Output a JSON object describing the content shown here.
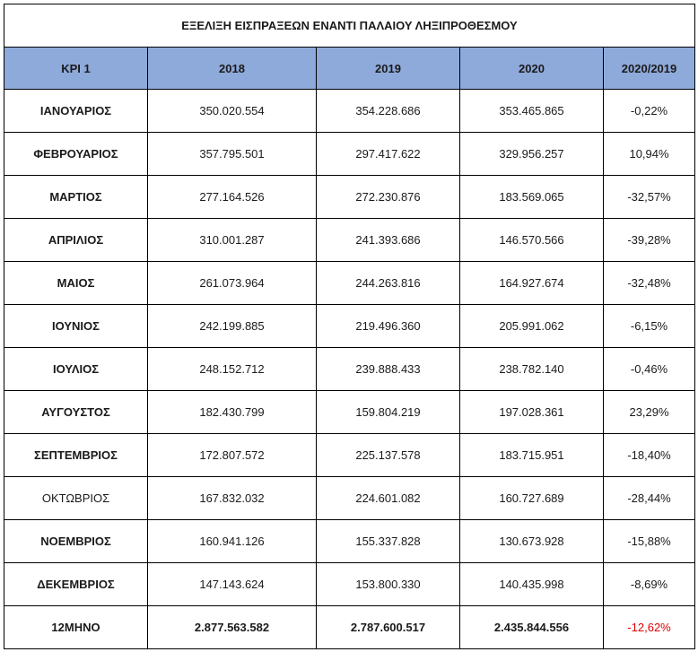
{
  "table": {
    "title": "ΕΞΕΛΙΞΗ ΕΙΣΠΡΑΞΕΩΝ ΕΝΑΝΤΙ ΠΑΛΑΙΟΥ ΛΗΞΙΠΡΟΘΕΣΜΟΥ",
    "headers": [
      "KPI 1",
      "2018",
      "2019",
      "2020",
      "2020/2019"
    ],
    "rows": [
      {
        "month": "ΙΑΝΟΥΑΡΙΟΣ",
        "y2018": "350.020.554",
        "y2019": "354.228.686",
        "y2020": "353.465.865",
        "change": "-0,22%"
      },
      {
        "month": "ΦΕΒΡΟΥΑΡΙΟΣ",
        "y2018": "357.795.501",
        "y2019": "297.417.622",
        "y2020": "329.956.257",
        "change": "10,94%"
      },
      {
        "month": "ΜΑΡΤΙΟΣ",
        "y2018": "277.164.526",
        "y2019": "272.230.876",
        "y2020": "183.569.065",
        "change": "-32,57%"
      },
      {
        "month": "ΑΠΡΙΛΙΟΣ",
        "y2018": "310.001.287",
        "y2019": "241.393.686",
        "y2020": "146.570.566",
        "change": "-39,28%"
      },
      {
        "month": "ΜΑΙΟΣ",
        "y2018": "261.073.964",
        "y2019": "244.263.816",
        "y2020": "164.927.674",
        "change": "-32,48%"
      },
      {
        "month": "ΙΟΥΝΙΟΣ",
        "y2018": "242.199.885",
        "y2019": "219.496.360",
        "y2020": "205.991.062",
        "change": "-6,15%"
      },
      {
        "month": "ΙΟΥΛΙΟΣ",
        "y2018": "248.152.712",
        "y2019": "239.888.433",
        "y2020": "238.782.140",
        "change": "-0,46%"
      },
      {
        "month": "ΑΥΓΟΥΣΤΟΣ",
        "y2018": "182.430.799",
        "y2019": "159.804.219",
        "y2020": "197.028.361",
        "change": "23,29%"
      },
      {
        "month": "ΣΕΠΤΕΜΒΡΙΟΣ",
        "y2018": "172.807.572",
        "y2019": "225.137.578",
        "y2020": "183.715.951",
        "change": "-18,40%"
      },
      {
        "month": "ΟΚΤΩΒΡΙΟΣ",
        "y2018": "167.832.032",
        "y2019": "224.601.082",
        "y2020": "160.727.689",
        "change": "-28,44%"
      },
      {
        "month": "ΝΟΕΜΒΡΙΟΣ",
        "y2018": "160.941.126",
        "y2019": "155.337.828",
        "y2020": "130.673.928",
        "change": "-15,88%"
      },
      {
        "month": "ΔΕΚΕΜΒΡΙΟΣ",
        "y2018": "147.143.624",
        "y2019": "153.800.330",
        "y2020": "140.435.998",
        "change": "-8,69%"
      }
    ],
    "total": {
      "month": "12ΜΗΝΟ",
      "y2018": "2.877.563.582",
      "y2019": "2.787.600.517",
      "y2020": "2.435.844.556",
      "change": "-12,62%"
    },
    "colors": {
      "header_bg": "#8eaadb",
      "negative_total": "#e00000"
    }
  }
}
